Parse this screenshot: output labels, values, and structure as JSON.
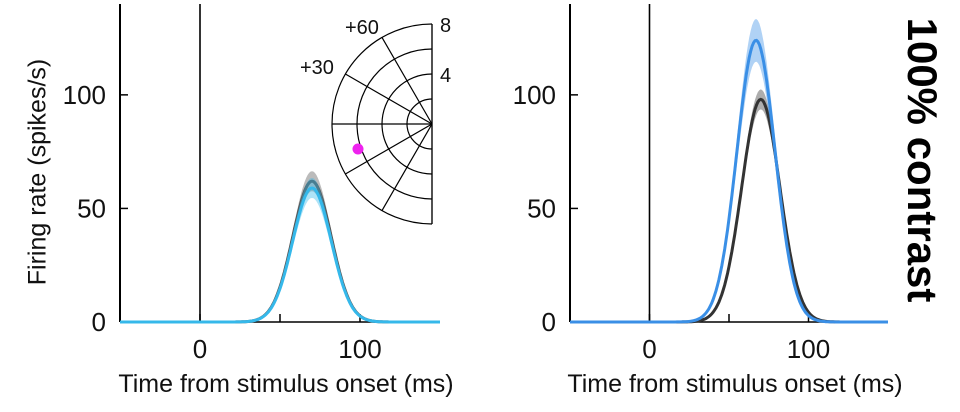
{
  "chart_data": [
    {
      "type": "line",
      "panel": "left",
      "ylabel": "Firing rate (spikes/s)",
      "xlabel": "Time from stimulus onset (ms)",
      "xlim": [
        -50,
        150
      ],
      "ylim": [
        0,
        140
      ],
      "xticks": [
        0,
        100
      ],
      "yticks": [
        0,
        50,
        100
      ],
      "stimulus_onset_line": 0,
      "series": [
        {
          "color": "#555555",
          "peak_time": 70,
          "peak": 62,
          "width": 12,
          "band": 4
        },
        {
          "color": "#35b8ea",
          "peak_time": 70,
          "peak": 59,
          "width": 12,
          "band": 4
        }
      ],
      "inset": {
        "type": "polar",
        "angle_labels": [
          "+30",
          "+60"
        ],
        "radius_labels": [
          "4",
          "8"
        ],
        "point": {
          "angle_deg": -150,
          "radius": 6.8,
          "color": "#ee22ee"
        }
      }
    },
    {
      "type": "line",
      "panel": "right",
      "xlabel": "Time from stimulus onset (ms)",
      "xlim": [
        -50,
        150
      ],
      "ylim": [
        0,
        140
      ],
      "xticks": [
        0,
        100
      ],
      "yticks": [
        0,
        50,
        100
      ],
      "stimulus_onset_line": 0,
      "series": [
        {
          "color": "#333333",
          "peak_time": 70,
          "peak": 98,
          "width": 12,
          "band": 4
        },
        {
          "color": "#3a8fe6",
          "peak_time": 67,
          "peak": 124,
          "width": 12,
          "band": 9
        }
      ]
    }
  ],
  "side_label": "100% contrast"
}
